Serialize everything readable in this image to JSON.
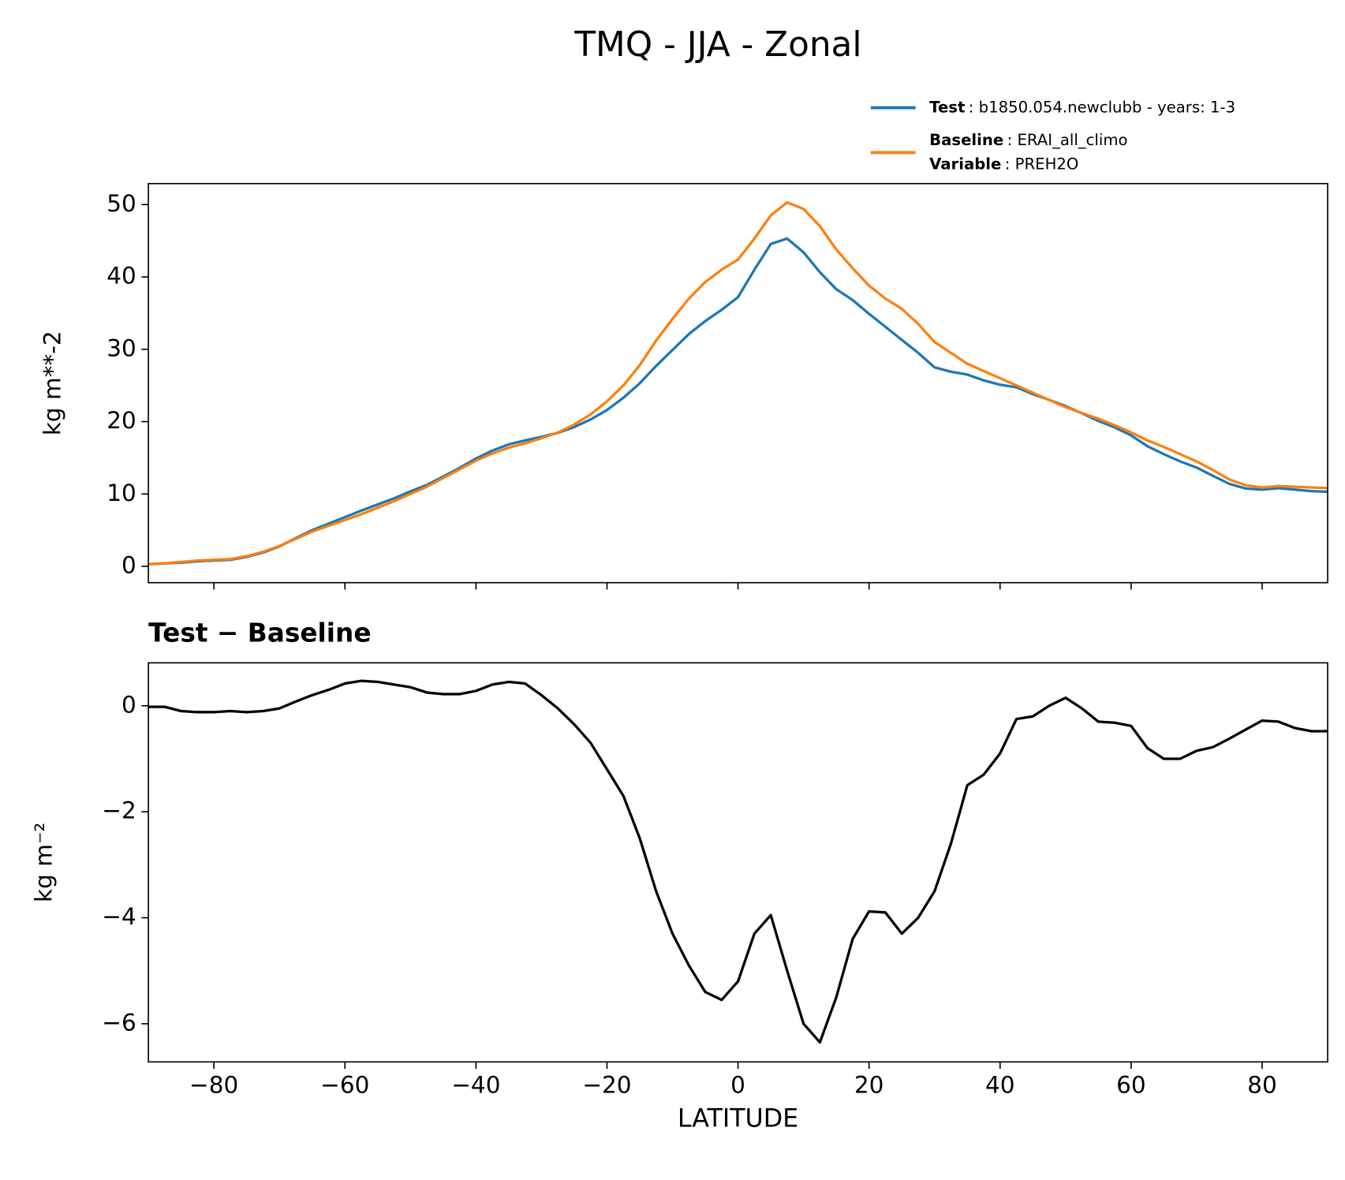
{
  "title": "TMQ - JJA - Zonal",
  "chart_data": [
    {
      "type": "line",
      "y_label": "kg m**-2",
      "x": [
        -90,
        -87.5,
        -85,
        -82.5,
        -80,
        -77.5,
        -75,
        -72.5,
        -70,
        -67.5,
        -65,
        -62.5,
        -60,
        -57.5,
        -55,
        -52.5,
        -50,
        -47.5,
        -45,
        -42.5,
        -40,
        -37.5,
        -35,
        -32.5,
        -30,
        -27.5,
        -25,
        -22.5,
        -20,
        -17.5,
        -15,
        -12.5,
        -10,
        -7.5,
        -5,
        -2.5,
        0,
        2.5,
        5,
        7.5,
        10,
        12.5,
        15,
        17.5,
        20,
        22.5,
        25,
        27.5,
        30,
        32.5,
        35,
        37.5,
        40,
        42.5,
        45,
        47.5,
        50,
        52.5,
        55,
        57.5,
        60,
        62.5,
        65,
        67.5,
        70,
        72.5,
        75,
        77.5,
        80,
        82.5,
        85,
        87.5,
        90
      ],
      "series": [
        {
          "name": "Test",
          "description": ": b1850.054.newclubb - years: 1-3",
          "color": "#1f77b4",
          "values": [
            0.3,
            0.4,
            0.5,
            0.7,
            0.8,
            0.9,
            1.3,
            1.9,
            2.75,
            3.9,
            5.0,
            5.9,
            6.8,
            7.7,
            8.55,
            9.4,
            10.35,
            11.25,
            12.4,
            13.6,
            14.9,
            16.0,
            16.85,
            17.4,
            17.9,
            18.45,
            19.25,
            20.3,
            21.6,
            23.3,
            25.3,
            27.7,
            29.9,
            32.1,
            33.9,
            35.45,
            37.2,
            41.0,
            44.55,
            45.3,
            43.4,
            40.65,
            38.3,
            36.8,
            34.9,
            33.1,
            31.3,
            29.5,
            27.5,
            26.9,
            26.5,
            25.7,
            25.1,
            24.75,
            23.8,
            23.0,
            22.15,
            21.15,
            20.1,
            19.2,
            18.1,
            16.6,
            15.5,
            14.5,
            13.65,
            12.5,
            11.4,
            10.75,
            10.6,
            10.8,
            10.6,
            10.4,
            10.3
          ]
        },
        {
          "name": "Baseline",
          "description": ": ERAI_all_climo",
          "extra_label": "Variable",
          "extra_description": ": PREH2O",
          "color": "#ff7f0e",
          "values": [
            0.3,
            0.4,
            0.6,
            0.8,
            0.9,
            1.0,
            1.4,
            2.0,
            2.8,
            3.8,
            4.8,
            5.6,
            6.4,
            7.2,
            8.1,
            9.0,
            10.0,
            11.0,
            12.2,
            13.4,
            14.6,
            15.6,
            16.4,
            17.0,
            17.7,
            18.5,
            19.6,
            21.0,
            22.8,
            25.0,
            27.8,
            31.2,
            34.2,
            37.0,
            39.3,
            41.0,
            42.4,
            45.3,
            48.5,
            50.3,
            49.4,
            47.0,
            43.8,
            41.2,
            38.8,
            37.0,
            35.6,
            33.5,
            31.0,
            29.5,
            28.0,
            27.0,
            26.0,
            25.0,
            24.0,
            23.0,
            22.0,
            21.2,
            20.4,
            19.5,
            18.5,
            17.4,
            16.5,
            15.5,
            14.5,
            13.3,
            12.0,
            11.2,
            10.9,
            11.1,
            11.0,
            10.9,
            10.8
          ]
        }
      ],
      "xlim": [
        -90,
        90
      ],
      "xticks": [
        -80,
        -60,
        -40,
        -20,
        0,
        20,
        40,
        60,
        80
      ],
      "xtick_labels": false,
      "ylim": [
        -2.26,
        52.9
      ],
      "yticks": [
        0,
        10,
        20,
        30,
        40,
        50
      ]
    },
    {
      "type": "line",
      "subtitle": "Test − Baseline",
      "x_label": "LATITUDE",
      "y_label": "kg m⁻²",
      "x": [
        -90,
        -87.5,
        -85,
        -82.5,
        -80,
        -77.5,
        -75,
        -72.5,
        -70,
        -67.5,
        -65,
        -62.5,
        -60,
        -57.5,
        -55,
        -52.5,
        -50,
        -47.5,
        -45,
        -42.5,
        -40,
        -37.5,
        -35,
        -32.5,
        -30,
        -27.5,
        -25,
        -22.5,
        -20,
        -17.5,
        -15,
        -12.5,
        -10,
        -7.5,
        -5,
        -2.5,
        0,
        2.5,
        5,
        7.5,
        10,
        12.5,
        15,
        17.5,
        20,
        22.5,
        25,
        27.5,
        30,
        32.5,
        35,
        37.5,
        40,
        42.5,
        45,
        47.5,
        50,
        52.5,
        55,
        57.5,
        60,
        62.5,
        65,
        67.5,
        70,
        72.5,
        75,
        77.5,
        80,
        82.5,
        85,
        87.5,
        90
      ],
      "color": "#000000",
      "values": [
        -0.02,
        -0.02,
        -0.1,
        -0.12,
        -0.12,
        -0.1,
        -0.12,
        -0.1,
        -0.05,
        0.08,
        0.2,
        0.3,
        0.42,
        0.47,
        0.45,
        0.4,
        0.35,
        0.25,
        0.22,
        0.22,
        0.28,
        0.4,
        0.45,
        0.42,
        0.2,
        -0.05,
        -0.35,
        -0.7,
        -1.2,
        -1.7,
        -2.5,
        -3.5,
        -4.3,
        -4.9,
        -5.4,
        -5.55,
        -5.2,
        -4.3,
        -3.95,
        -5.0,
        -6.0,
        -6.35,
        -5.5,
        -4.4,
        -3.88,
        -3.9,
        -4.3,
        -4.0,
        -3.5,
        -2.6,
        -1.5,
        -1.3,
        -0.9,
        -0.25,
        -0.2,
        0.0,
        0.15,
        -0.05,
        -0.3,
        -0.32,
        -0.38,
        -0.8,
        -1.0,
        -1.0,
        -0.85,
        -0.78,
        -0.62,
        -0.45,
        -0.28,
        -0.3,
        -0.42,
        -0.48,
        -0.48
      ],
      "xlim": [
        -90,
        90
      ],
      "xticks": [
        {
          "value": -80,
          "label": "−80"
        },
        {
          "value": -60,
          "label": "−60"
        },
        {
          "value": -40,
          "label": "−40"
        },
        {
          "value": -20,
          "label": "−20"
        },
        0,
        20,
        40,
        60,
        80
      ],
      "ylim": [
        -6.72,
        0.81
      ],
      "yticks": [
        {
          "value": -6,
          "label": "−6"
        },
        {
          "value": -4,
          "label": "−4"
        },
        {
          "value": -2,
          "label": "−2"
        },
        0
      ]
    }
  ]
}
